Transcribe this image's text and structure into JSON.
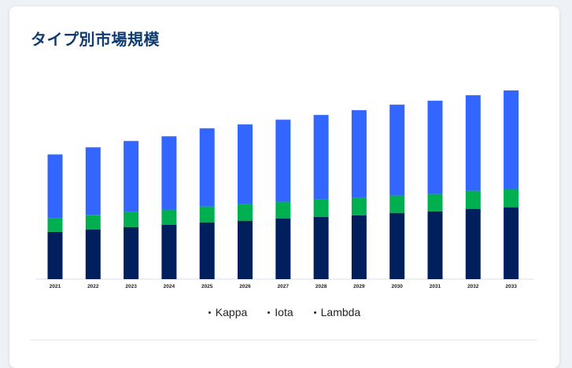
{
  "title": "タイプ別市場規模",
  "chart_data": {
    "type": "bar",
    "stacked": true,
    "categories": [
      "2021",
      "2022",
      "2023",
      "2024",
      "2025",
      "2026",
      "2027",
      "2028",
      "2029",
      "2030",
      "2031",
      "2032",
      "2033"
    ],
    "series": [
      {
        "name": "Kappa",
        "color": "#001f5c",
        "values": [
          60,
          63,
          66,
          69,
          72,
          74,
          77,
          79,
          81,
          84,
          86,
          89,
          91
        ]
      },
      {
        "name": "Iota",
        "color": "#00b050",
        "values": [
          17,
          18,
          19,
          19,
          20,
          21,
          21,
          22,
          22,
          22,
          22,
          23,
          23
        ]
      },
      {
        "name": "Lambda",
        "color": "#3366ff",
        "values": [
          81,
          86,
          90,
          93,
          99,
          101,
          104,
          107,
          111,
          115,
          118,
          121,
          125
        ]
      }
    ],
    "ylim": [
      0,
      250
    ],
    "grid": false,
    "legend_position": "bottom"
  },
  "legend": {
    "items": [
      "Kappa",
      "Iota",
      "Lambda"
    ]
  }
}
